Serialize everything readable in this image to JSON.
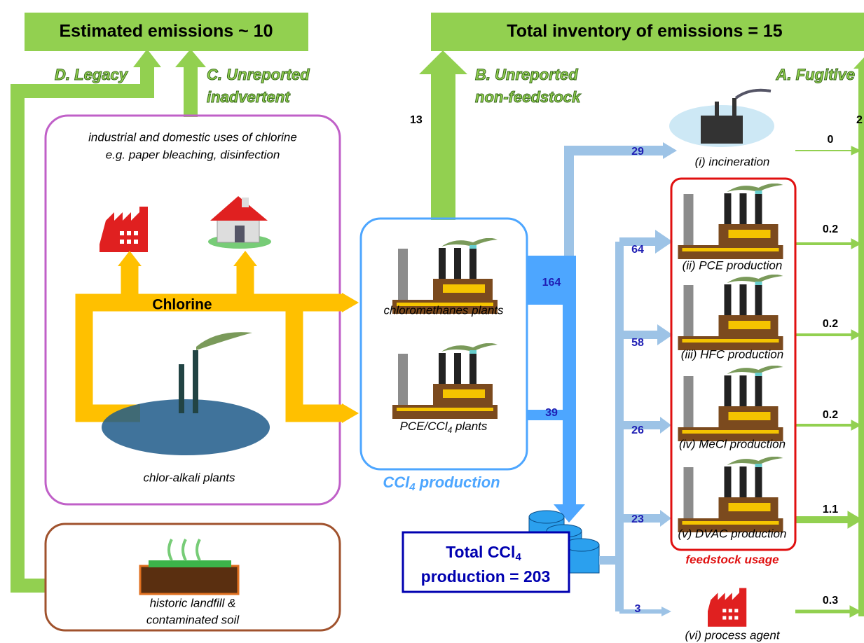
{
  "banners": {
    "estimated": "Estimated emissions ~ 10",
    "total": "Total inventory of emissions = 15"
  },
  "pathways": {
    "legacy": "D. Legacy",
    "inadvertent": [
      "C. Unreported",
      "inadvertent"
    ],
    "non_feedstock": [
      "B. Unreported",
      "non-feedstock"
    ],
    "fugitive": "A. Fugitive"
  },
  "pathway_values": {
    "non_feedstock": 13,
    "fugitive": 2
  },
  "chlorine_box": {
    "lines": [
      "industrial and domestic uses of chlorine",
      "e.g. paper bleaching, disinfection"
    ],
    "chlorine": "Chlorine",
    "plant": "chlor-alkali plants"
  },
  "production": {
    "chloromethanes": "chloromethanes plants",
    "pce": {
      "pre": "PCE/CCl",
      "sub": "4",
      "post": " plants"
    },
    "title": {
      "pre": "CCl",
      "sub": "4",
      "post": " production"
    },
    "flows": [
      164,
      39
    ]
  },
  "total": {
    "pre": "Total CCl",
    "sub": "4",
    "line2": "production = 203"
  },
  "uses": [
    {
      "label": "(i) incineration",
      "input": 29,
      "emission": 0
    },
    {
      "label": "(ii) PCE production",
      "input": 64,
      "emission": 0.2
    },
    {
      "label": "(iii) HFC production",
      "input": 58,
      "emission": 0.2
    },
    {
      "label": "(iv) MeCl production",
      "input": 26,
      "emission": 0.2
    },
    {
      "label": "(v) DVAC production",
      "input": 23,
      "emission": 1.1
    },
    {
      "label": "(vi) process agent",
      "input": 3,
      "emission": 0.3
    }
  ],
  "feedstock": "feedstock usage",
  "landfill": [
    "historic landfill &",
    "contaminated soil"
  ]
}
